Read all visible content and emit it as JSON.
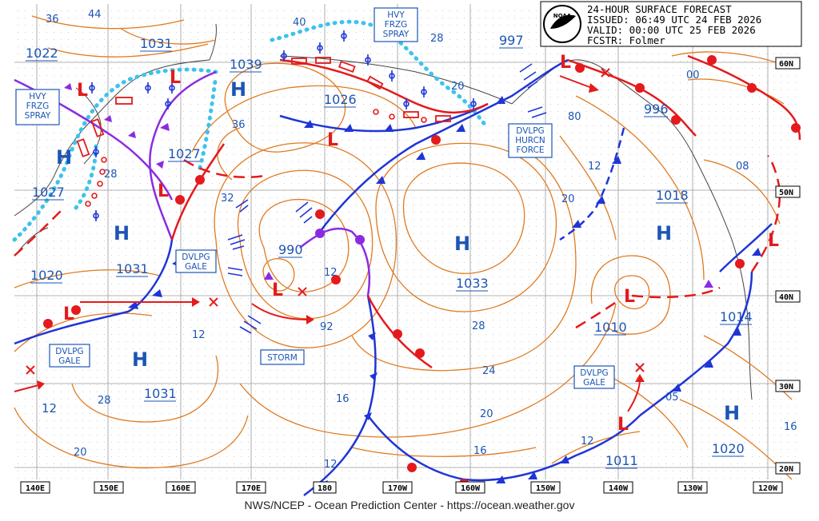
{
  "header": {
    "title": "24-HOUR SURFACE FORECAST",
    "issued": "ISSUED: 06:49 UTC 24 FEB 2026",
    "valid": "VALID:  00:00 UTC 25 FEB 2026",
    "forecaster": "FCSTR:  Folmer",
    "logo_text": "NOAA"
  },
  "footer": {
    "credit": "NWS/NCEP - Ocean Prediction Center - https://ocean.weather.gov"
  },
  "lon_labels": [
    "140E",
    "150E",
    "160E",
    "170E",
    "180",
    "170W",
    "160W",
    "150W",
    "140W",
    "130W",
    "120W"
  ],
  "lat_labels": [
    "60N",
    "50N",
    "40N",
    "30N",
    "20N"
  ],
  "pressure_centers": [
    {
      "type": "H",
      "value": "1031"
    },
    {
      "type": "H",
      "value": "1039"
    },
    {
      "type": "H",
      "value": "1027"
    },
    {
      "type": "H",
      "value": "1031"
    },
    {
      "type": "H",
      "value": "1031"
    },
    {
      "type": "H",
      "value": "1033"
    },
    {
      "type": "H",
      "value": "1018"
    },
    {
      "type": "H",
      "value": "1020"
    },
    {
      "type": "L",
      "value": "1022"
    },
    {
      "type": "L",
      "value": "1027"
    },
    {
      "type": "L",
      "value": "1020"
    },
    {
      "type": "L",
      "value": "1026"
    },
    {
      "type": "L",
      "value": "997"
    },
    {
      "type": "L",
      "value": "996"
    },
    {
      "type": "L",
      "value": "990"
    },
    {
      "type": "L",
      "value": "1010"
    },
    {
      "type": "L",
      "value": "1014"
    },
    {
      "type": "L",
      "value": "1011"
    }
  ],
  "isobar_labels": [
    "36",
    "44",
    "40",
    "28",
    "20",
    "36",
    "32",
    "28",
    "12",
    "12",
    "92",
    "16",
    "12",
    "28",
    "24",
    "20",
    "16",
    "12",
    "05",
    "16",
    "20",
    "80",
    "12",
    "08",
    "00",
    "28",
    "20"
  ],
  "warning_boxes": [
    "HVY\nFRZG\nSPRAY",
    "HVY\nFRZG\nSPRAY",
    "DVLPG\nHURCN\nFORCE",
    "DVLPG\nGALE",
    "DVLPG\nGALE",
    "STORM",
    "DVLPG\nGALE"
  ],
  "colors": {
    "isobar": "#e07a1f",
    "cold_front": "#1f35d6",
    "warm_front": "#e41a1c",
    "occluded": "#8a2be2",
    "text_blue": "#1c55b4",
    "spray": "#3cc3ec",
    "grid": "#b8b8b8"
  }
}
